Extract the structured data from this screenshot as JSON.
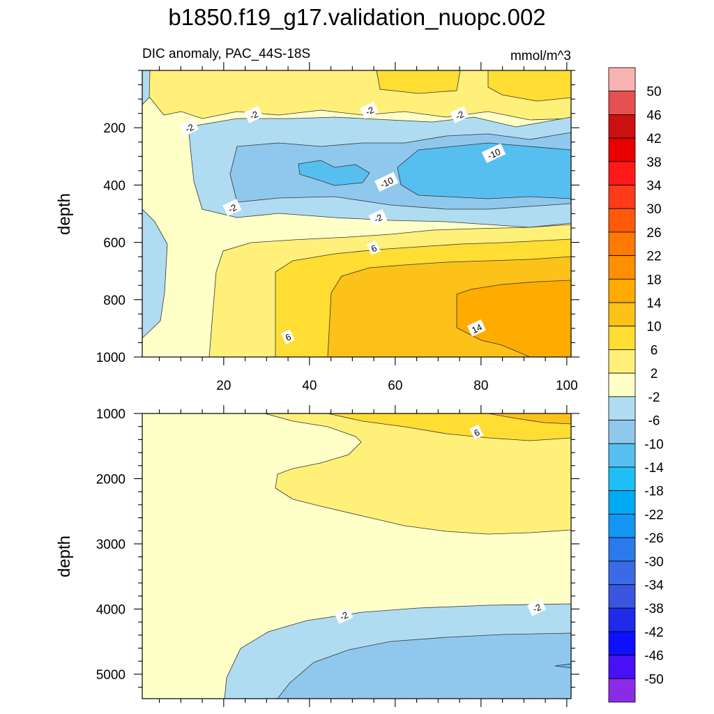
{
  "title": "b1850.f19_g17.validation_nuopc.002",
  "chart_data": {
    "type": "contour",
    "title": "b1850.f19_g17.validation_nuopc.002",
    "left_string": "DIC anomaly, PAC_44S-18S",
    "right_string": "mmol/m^3",
    "xlabel": "",
    "ylabel": "depth",
    "panels": [
      {
        "name": "upper",
        "ylabel": "depth",
        "xlim": [
          1,
          101
        ],
        "ylim": [
          0,
          1000
        ],
        "y_inverted": true,
        "xticks": [
          20,
          40,
          60,
          80,
          100
        ],
        "yticks": [
          200,
          400,
          600,
          800,
          1000
        ],
        "contour_labels": [
          {
            "text": "-2",
            "x": 12,
            "y": 200
          },
          {
            "text": "-2",
            "x": 27,
            "y": 155
          },
          {
            "text": "-2",
            "x": 54,
            "y": 140
          },
          {
            "text": "-2",
            "x": 75,
            "y": 155
          },
          {
            "text": "-10",
            "x": 83,
            "y": 290
          },
          {
            "text": "-10",
            "x": 58,
            "y": 390
          },
          {
            "text": "-2",
            "x": 22,
            "y": 480
          },
          {
            "text": "-2",
            "x": 56,
            "y": 515
          },
          {
            "text": "6",
            "x": 55,
            "y": 620
          },
          {
            "text": "6",
            "x": 35,
            "y": 930
          },
          {
            "text": "14",
            "x": 79,
            "y": 900
          }
        ]
      },
      {
        "name": "lower",
        "ylabel": "depth",
        "xlim": [
          1,
          101
        ],
        "ylim": [
          1000,
          5375
        ],
        "y_inverted": true,
        "yticks": [
          1000,
          2000,
          3000,
          4000,
          5000
        ],
        "contour_labels": [
          {
            "text": "6",
            "x": 79,
            "y": 1290
          },
          {
            "text": "-2",
            "x": 48,
            "y": 4100
          },
          {
            "text": "-2",
            "x": 93,
            "y": 3980
          }
        ]
      }
    ],
    "colorbar": {
      "labels": [
        "50",
        "46",
        "42",
        "38",
        "34",
        "30",
        "26",
        "22",
        "18",
        "14",
        "10",
        "6",
        "2",
        "-2",
        "-6",
        "-10",
        "-14",
        "-18",
        "-22",
        "-26",
        "-30",
        "-34",
        "-38",
        "-42",
        "-46",
        "-50"
      ],
      "colors": [
        "#f9b2b2",
        "#e65050",
        "#cc1010",
        "#e60000",
        "#ff1a1a",
        "#ff3b1a",
        "#ff5a0a",
        "#ff7a00",
        "#ff8f00",
        "#ffab00",
        "#fcc21a",
        "#ffdd33",
        "#fff07a",
        "#ffffc8",
        "#b0dcf2",
        "#8fc8ec",
        "#56bff0",
        "#1ebff5",
        "#00aaf5",
        "#1496f5",
        "#2a7aeb",
        "#3a6ae6",
        "#3a56e0",
        "#1f2aeb",
        "#0f0fff",
        "#4a10f5",
        "#8a2be8"
      ]
    }
  }
}
